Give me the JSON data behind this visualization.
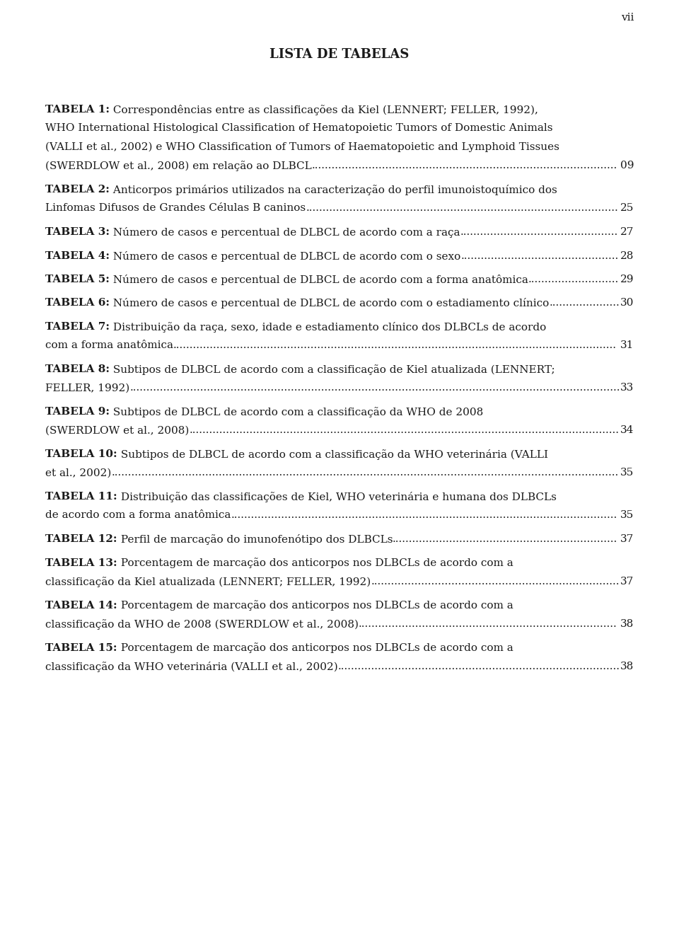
{
  "page_number": "vii",
  "title": "LISTA DE TABELAS",
  "bg": "#ffffff",
  "fg": "#1a1a1a",
  "entries": [
    {
      "lines": [
        {
          "b": "TABELA 1:",
          "r": " Correspondências entre as classificações da Kiel (LENNERT; FELLER, 1992),"
        },
        {
          "b": "",
          "r": "WHO International Histological Classification of Hematopoietic Tumors of Domestic Animals"
        },
        {
          "b": "",
          "r": "(VALLI et al., 2002) e WHO Classification of Tumors of Haematopoietic and Lymphoid Tissues"
        },
        {
          "b": "",
          "r": "(SWERDLOW et al., 2008) em relação ao DLBCL",
          "p": "09"
        }
      ]
    },
    {
      "lines": [
        {
          "b": "TABELA 2:",
          "r": " Anticorpos primários utilizados na caracterização do perfil imunoistoquímico dos"
        },
        {
          "b": "",
          "r": "Linfomas Difusos de Grandes Células B caninos",
          "p": "25"
        }
      ]
    },
    {
      "lines": [
        {
          "b": "TABELA 3:",
          "r": " Número de casos e percentual de DLBCL de acordo com a raça",
          "p": "27"
        }
      ]
    },
    {
      "lines": [
        {
          "b": "TABELA 4:",
          "r": " Número de casos e percentual de DLBCL de acordo com o sexo",
          "p": "28"
        }
      ]
    },
    {
      "lines": [
        {
          "b": "TABELA 5:",
          "r": " Número de casos e percentual de DLBCL de acordo com a forma anatômica",
          "p": "29"
        }
      ]
    },
    {
      "lines": [
        {
          "b": "TABELA 6:",
          "r": " Número de casos e percentual de DLBCL de acordo com o estadiamento clínico",
          "p": "30"
        }
      ]
    },
    {
      "lines": [
        {
          "b": "TABELA 7:",
          "r": " Distribuição da raça, sexo, idade e estadiamento clínico dos DLBCLs de acordo"
        },
        {
          "b": "",
          "r": "com a forma anatômica",
          "p": "31"
        }
      ]
    },
    {
      "lines": [
        {
          "b": "TABELA 8:",
          "r": " Subtipos de DLBCL de acordo com a classificação de Kiel atualizada (LENNERT;"
        },
        {
          "b": "",
          "r": "FELLER, 1992)",
          "p": "33"
        }
      ]
    },
    {
      "lines": [
        {
          "b": "TABELA 9:",
          "r": " Subtipos de DLBCL de acordo com a classificação da WHO de 2008"
        },
        {
          "b": "",
          "r": "(SWERDLOW et al., 2008)",
          "p": "34"
        }
      ]
    },
    {
      "lines": [
        {
          "b": "TABELA 10:",
          "r": " Subtipos de DLBCL de acordo com a classificação da WHO veterinária (VALLI"
        },
        {
          "b": "",
          "r": "et al., 2002)",
          "p": "35"
        }
      ]
    },
    {
      "lines": [
        {
          "b": "TABELA 11:",
          "r": " Distribuição das classificações de Kiel, WHO veterinária e humana dos DLBCLs"
        },
        {
          "b": "",
          "r": "de acordo com a forma anatômica",
          "p": "35"
        }
      ]
    },
    {
      "lines": [
        {
          "b": "TABELA 12:",
          "r": " Perfil de marcação do imunofenótipo dos DLBCLs",
          "p": "37"
        }
      ]
    },
    {
      "lines": [
        {
          "b": "TABELA 13:",
          "r": " Porcentagem de marcação dos anticorpos nos DLBCLs de acordo com a"
        },
        {
          "b": "",
          "r": "classificação da Kiel atualizada (LENNERT; FELLER, 1992)",
          "p": "37"
        }
      ]
    },
    {
      "lines": [
        {
          "b": "TABELA 14:",
          "r": " Porcentagem de marcação dos anticorpos nos DLBCLs de acordo com a"
        },
        {
          "b": "",
          "r": "classificação da WHO de 2008 (SWERDLOW et al., 2008)",
          "p": "38"
        }
      ]
    },
    {
      "lines": [
        {
          "b": "TABELA 15:",
          "r": " Porcentagem de marcação dos anticorpos nos DLBCLs de acordo com a"
        },
        {
          "b": "",
          "r": "classificação da WHO veterinária (VALLI et al., 2002)",
          "p": "38"
        }
      ]
    }
  ]
}
